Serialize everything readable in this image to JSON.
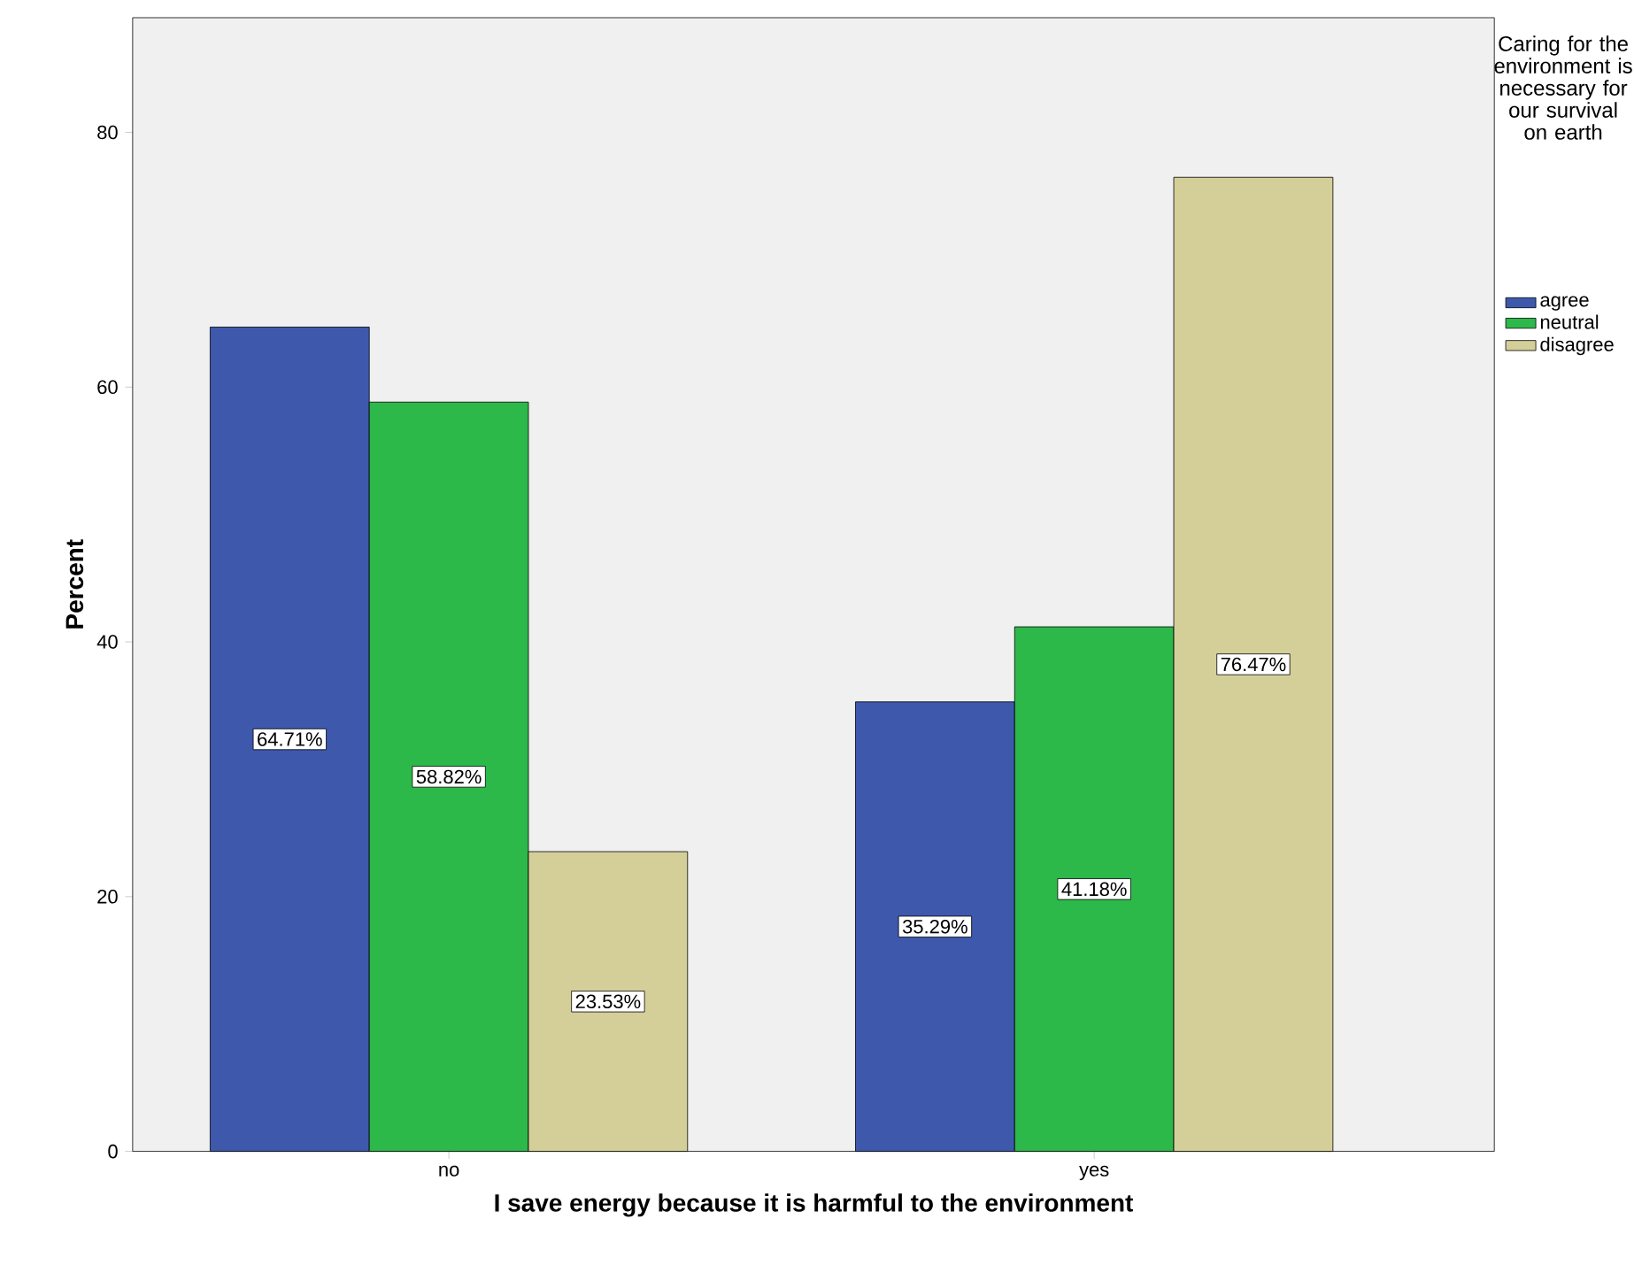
{
  "chart_data": {
    "type": "bar",
    "xlabel": "I save energy because it is harmful to the environment",
    "ylabel": "Percent",
    "legend_title": "Caring for the environment is necessary for our survival on earth",
    "categories": [
      "no",
      "yes"
    ],
    "series": [
      {
        "name": "agree",
        "color": "#3e58ac",
        "values": [
          64.71,
          35.29
        ],
        "value_labels": [
          "64.71%",
          "35.29%"
        ]
      },
      {
        "name": "neutral",
        "color": "#2db84a",
        "values": [
          58.82,
          41.18
        ],
        "value_labels": [
          "58.82%",
          "41.18%"
        ]
      },
      {
        "name": "disagree",
        "color": "#d4cf98",
        "values": [
          23.53,
          76.47
        ],
        "value_labels": [
          "23.53%",
          "76.47%"
        ]
      }
    ],
    "ylim": [
      0,
      89
    ],
    "yticks": [
      0,
      20,
      40,
      60,
      80
    ],
    "legend": "right"
  }
}
